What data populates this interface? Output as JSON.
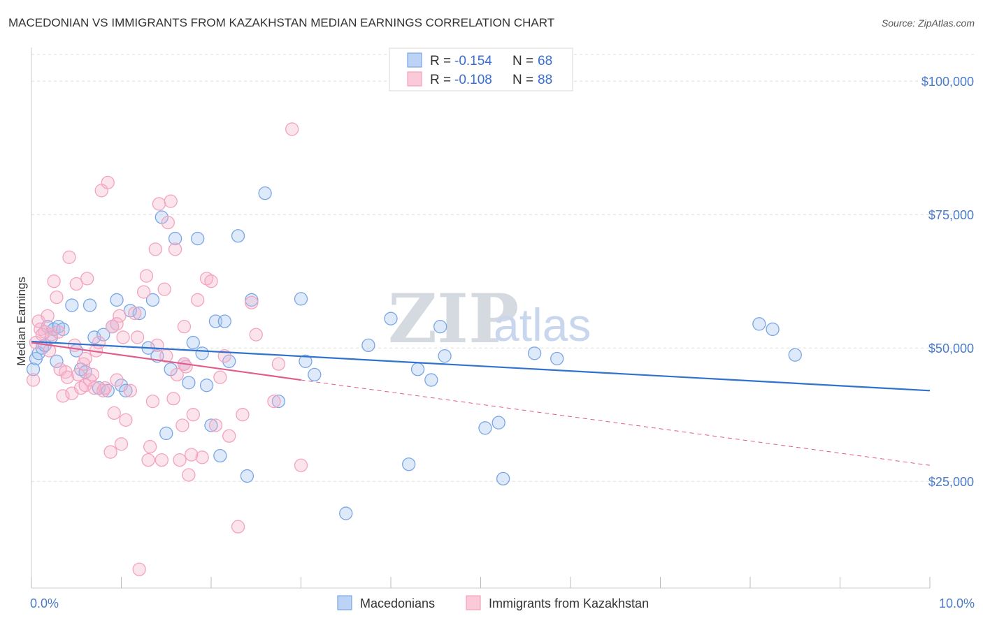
{
  "chart_data": {
    "type": "scatter",
    "title": "MACEDONIAN VS IMMIGRANTS FROM KAZAKHSTAN MEDIAN EARNINGS CORRELATION CHART",
    "source": "Source: ZipAtlas.com",
    "xlabel": "",
    "ylabel": "Median Earnings",
    "xlim": [
      0,
      10
    ],
    "ylim": [
      5000,
      105000
    ],
    "x_tick_labels": [
      {
        "value": 0,
        "label": "0.0%"
      },
      {
        "value": 10,
        "label": "10.0%"
      }
    ],
    "y_ticks": [
      {
        "value": 25000,
        "label": "$25,000"
      },
      {
        "value": 50000,
        "label": "$50,000"
      },
      {
        "value": 75000,
        "label": "$75,000"
      },
      {
        "value": 100000,
        "label": "$100,000"
      }
    ],
    "legend": {
      "entries": [
        {
          "r_label": "R = ",
          "r_value": "-0.154",
          "n_label": "N = ",
          "n_value": "68"
        },
        {
          "r_label": "R = ",
          "r_value": "-0.108",
          "n_label": "N = ",
          "n_value": "88"
        }
      ]
    },
    "watermark": {
      "zip": "ZIP",
      "atlas": "atlas"
    },
    "series": [
      {
        "name": "Macedonians",
        "color": "#7aa6e6",
        "line_color": "#2f72d0",
        "trend": {
          "x0": 0,
          "y0": 51200,
          "x1": 10,
          "y1": 42000,
          "dashed_to": 10
        },
        "points": [
          [
            0.02,
            46000
          ],
          [
            0.05,
            48000
          ],
          [
            0.08,
            49000
          ],
          [
            0.12,
            50000
          ],
          [
            0.18,
            54000
          ],
          [
            0.22,
            52000
          ],
          [
            0.25,
            53500
          ],
          [
            0.28,
            47500
          ],
          [
            0.3,
            54000
          ],
          [
            0.45,
            58000
          ],
          [
            0.5,
            49500
          ],
          [
            0.55,
            46000
          ],
          [
            0.65,
            58000
          ],
          [
            0.7,
            52000
          ],
          [
            0.75,
            42500
          ],
          [
            0.8,
            52500
          ],
          [
            0.9,
            54000
          ],
          [
            0.95,
            59000
          ],
          [
            1.0,
            43000
          ],
          [
            1.05,
            42000
          ],
          [
            1.1,
            57000
          ],
          [
            1.2,
            56500
          ],
          [
            1.3,
            50000
          ],
          [
            1.35,
            59000
          ],
          [
            1.4,
            48500
          ],
          [
            1.45,
            74500
          ],
          [
            1.5,
            34000
          ],
          [
            1.55,
            46000
          ],
          [
            1.6,
            70500
          ],
          [
            1.7,
            47000
          ],
          [
            1.75,
            43500
          ],
          [
            1.8,
            51000
          ],
          [
            1.85,
            70500
          ],
          [
            1.9,
            49000
          ],
          [
            1.95,
            43000
          ],
          [
            2.0,
            35500
          ],
          [
            2.05,
            55000
          ],
          [
            2.1,
            29800
          ],
          [
            2.15,
            55000
          ],
          [
            2.2,
            47500
          ],
          [
            2.3,
            71000
          ],
          [
            2.4,
            26000
          ],
          [
            2.45,
            59000
          ],
          [
            2.6,
            79000
          ],
          [
            2.75,
            40000
          ],
          [
            3.0,
            59200
          ],
          [
            3.05,
            47500
          ],
          [
            3.15,
            45000
          ],
          [
            3.5,
            19000
          ],
          [
            3.75,
            50500
          ],
          [
            4.0,
            55500
          ],
          [
            4.2,
            28200
          ],
          [
            4.3,
            46000
          ],
          [
            4.45,
            44000
          ],
          [
            4.55,
            54000
          ],
          [
            4.6,
            48500
          ],
          [
            5.05,
            35000
          ],
          [
            5.2,
            36000
          ],
          [
            5.25,
            25500
          ],
          [
            5.6,
            49000
          ],
          [
            5.85,
            48000
          ],
          [
            8.1,
            54500
          ],
          [
            8.25,
            53500
          ],
          [
            8.5,
            48700
          ],
          [
            0.15,
            50500
          ],
          [
            0.35,
            53500
          ],
          [
            0.6,
            45500
          ],
          [
            0.85,
            42000
          ]
        ]
      },
      {
        "name": "Immigrants from Kazakhstan",
        "color": "#f4a3be",
        "line_color": "#e05c8a",
        "trend": {
          "x0": 0,
          "y0": 51000,
          "x1": 3.0,
          "y1": 44000,
          "dashed_to": 10,
          "y_end": 28000
        },
        "points": [
          [
            0.02,
            44000
          ],
          [
            0.05,
            51000
          ],
          [
            0.08,
            55000
          ],
          [
            0.1,
            53500
          ],
          [
            0.15,
            53000
          ],
          [
            0.18,
            56000
          ],
          [
            0.2,
            49500
          ],
          [
            0.22,
            52500
          ],
          [
            0.25,
            62500
          ],
          [
            0.28,
            59500
          ],
          [
            0.3,
            53000
          ],
          [
            0.32,
            46000
          ],
          [
            0.35,
            41000
          ],
          [
            0.38,
            45500
          ],
          [
            0.4,
            44500
          ],
          [
            0.42,
            67000
          ],
          [
            0.45,
            41500
          ],
          [
            0.48,
            50500
          ],
          [
            0.5,
            62000
          ],
          [
            0.52,
            45000
          ],
          [
            0.55,
            42500
          ],
          [
            0.58,
            47000
          ],
          [
            0.6,
            43000
          ],
          [
            0.62,
            63000
          ],
          [
            0.65,
            44000
          ],
          [
            0.68,
            45000
          ],
          [
            0.7,
            42500
          ],
          [
            0.72,
            49500
          ],
          [
            0.75,
            51000
          ],
          [
            0.78,
            79500
          ],
          [
            0.8,
            42000
          ],
          [
            0.82,
            42500
          ],
          [
            0.85,
            81000
          ],
          [
            0.88,
            30500
          ],
          [
            0.9,
            54000
          ],
          [
            0.92,
            37800
          ],
          [
            0.95,
            44000
          ],
          [
            0.98,
            56000
          ],
          [
            1.0,
            32000
          ],
          [
            1.02,
            52000
          ],
          [
            1.05,
            36500
          ],
          [
            1.1,
            42000
          ],
          [
            1.15,
            56500
          ],
          [
            1.18,
            52000
          ],
          [
            1.2,
            8500
          ],
          [
            1.25,
            60500
          ],
          [
            1.28,
            63500
          ],
          [
            1.3,
            29000
          ],
          [
            1.32,
            31500
          ],
          [
            1.35,
            40000
          ],
          [
            1.38,
            68500
          ],
          [
            1.4,
            50500
          ],
          [
            1.42,
            77000
          ],
          [
            1.45,
            29000
          ],
          [
            1.48,
            61000
          ],
          [
            1.5,
            48500
          ],
          [
            1.52,
            73500
          ],
          [
            1.55,
            77500
          ],
          [
            1.58,
            40500
          ],
          [
            1.6,
            68500
          ],
          [
            1.62,
            45000
          ],
          [
            1.65,
            29000
          ],
          [
            1.68,
            35500
          ],
          [
            1.7,
            47000
          ],
          [
            1.72,
            46500
          ],
          [
            1.75,
            26200
          ],
          [
            1.78,
            30000
          ],
          [
            1.8,
            37500
          ],
          [
            1.85,
            59000
          ],
          [
            1.9,
            29500
          ],
          [
            1.95,
            63000
          ],
          [
            2.0,
            62500
          ],
          [
            2.05,
            35500
          ],
          [
            2.1,
            44500
          ],
          [
            2.15,
            48500
          ],
          [
            2.2,
            33500
          ],
          [
            2.3,
            16500
          ],
          [
            2.35,
            37500
          ],
          [
            2.45,
            58500
          ],
          [
            2.7,
            40000
          ],
          [
            2.75,
            47000
          ],
          [
            2.9,
            91000
          ],
          [
            3.0,
            28000
          ],
          [
            0.12,
            52500
          ],
          [
            0.6,
            48000
          ],
          [
            0.95,
            54500
          ],
          [
            1.7,
            54000
          ],
          [
            2.5,
            52500
          ]
        ]
      }
    ]
  }
}
